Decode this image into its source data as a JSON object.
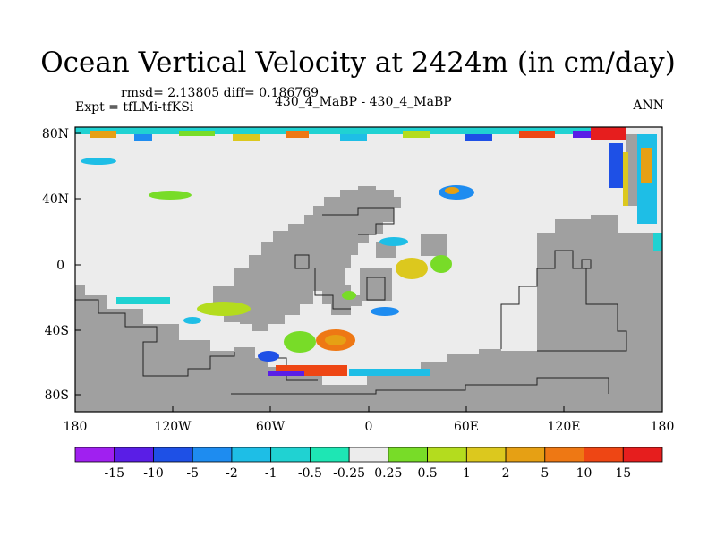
{
  "title": "Ocean Vertical Velocity at 2424m (in cm/day)",
  "stats": "rmsd= 2.13805 diff= 0.186769",
  "expt": "Expt = tfLMi-tfKSi",
  "center_label": "430_4_MaBP - 430_4_MaBP",
  "season": "ANN",
  "lat_ticks": [
    "80N",
    "40N",
    "0",
    "40S",
    "80S"
  ],
  "lon_ticks": [
    "180",
    "120W",
    "60W",
    "0",
    "60E",
    "120E",
    "180"
  ],
  "colorbar": {
    "labels": [
      "-15",
      "-10",
      "-5",
      "-2",
      "-1",
      "-0.5",
      "-0.25",
      "0.25",
      "0.5",
      "1",
      "2",
      "5",
      "10",
      "15"
    ],
    "colors": [
      "#a020f0",
      "#5a1ee6",
      "#1e50e6",
      "#1e8cf0",
      "#1ebee6",
      "#20d2d2",
      "#1ee6b4",
      "#ececec",
      "#78dc28",
      "#b4dc1e",
      "#dcc81e",
      "#e6a014",
      "#ee7814",
      "#ee4614",
      "#e61e1e"
    ]
  },
  "colors": {
    "land": "#a0a0a0",
    "ocean_zero": "#ececec"
  }
}
